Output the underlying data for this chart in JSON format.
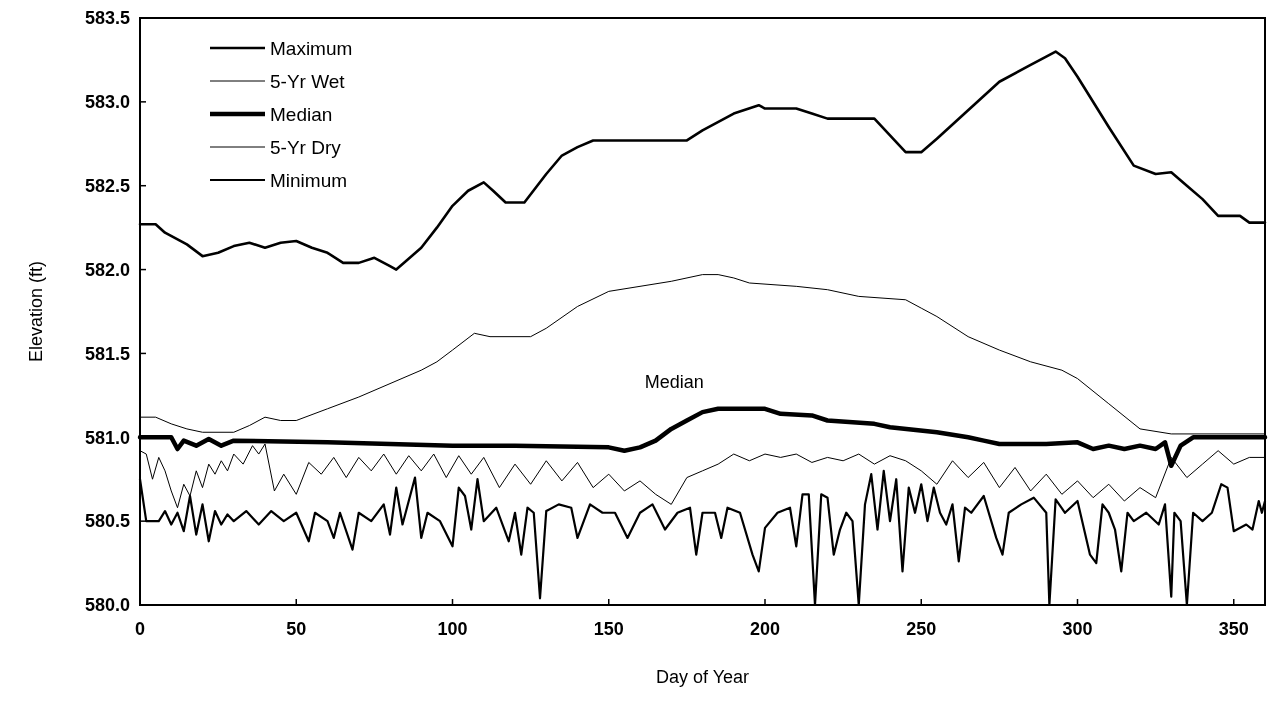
{
  "chart_data": {
    "type": "line",
    "xlabel": "Day of Year",
    "ylabel": "Elevation (ft)",
    "xlim": [
      0,
      360
    ],
    "xticks": [
      0,
      50,
      100,
      150,
      200,
      250,
      300,
      350
    ],
    "ylim": [
      580,
      583.5
    ],
    "yticks": [
      {
        "value": 580,
        "label": "580.0"
      },
      580.5,
      {
        "value": 581,
        "label": "581.0"
      },
      581.5,
      {
        "value": 582,
        "label": "582.0"
      },
      582.5,
      {
        "value": 583,
        "label": "583.0"
      },
      583.5
    ],
    "grid": false,
    "legend": "top left",
    "line_style": "solid",
    "marker": "none",
    "annotations": [
      "Median"
    ],
    "series": [
      {
        "name": "Maximum",
        "color": "#000000",
        "x": [
          0,
          5,
          8,
          15,
          20,
          25,
          30,
          35,
          40,
          45,
          50,
          55,
          60,
          65,
          70,
          75,
          80,
          82,
          90,
          95,
          100,
          105,
          110,
          113,
          117,
          123,
          130,
          135,
          140,
          145,
          175,
          180,
          190,
          198,
          200,
          210,
          215,
          220,
          235,
          240,
          245,
          250,
          255,
          265,
          275,
          285,
          290,
          293,
          296,
          300,
          310,
          318,
          325,
          330,
          335,
          340,
          345,
          352,
          355,
          360
        ],
        "values": [
          582.27,
          582.27,
          582.22,
          582.15,
          582.08,
          582.1,
          582.14,
          582.16,
          582.13,
          582.16,
          582.17,
          582.13,
          582.1,
          582.04,
          582.04,
          582.07,
          582.02,
          582.0,
          582.13,
          582.25,
          582.38,
          582.47,
          582.52,
          582.47,
          582.4,
          582.4,
          582.57,
          582.68,
          582.73,
          582.77,
          582.77,
          582.83,
          582.93,
          582.98,
          582.96,
          582.96,
          582.93,
          582.9,
          582.9,
          582.8,
          582.7,
          582.7,
          582.78,
          582.95,
          583.12,
          583.22,
          583.27,
          583.3,
          583.26,
          583.15,
          582.85,
          582.62,
          582.57,
          582.58,
          582.5,
          582.42,
          582.32,
          582.32,
          582.28,
          582.28
        ]
      },
      {
        "name": "5-Yr Wet",
        "color": "#000000",
        "x": [
          0,
          5,
          10,
          15,
          20,
          30,
          35,
          40,
          45,
          50,
          60,
          70,
          80,
          90,
          95,
          100,
          107,
          112,
          125,
          130,
          140,
          150,
          160,
          170,
          180,
          185,
          190,
          195,
          210,
          220,
          230,
          245,
          250,
          255,
          265,
          275,
          285,
          295,
          300,
          310,
          320,
          330,
          360
        ],
        "values": [
          581.12,
          581.12,
          581.08,
          581.05,
          581.03,
          581.03,
          581.07,
          581.12,
          581.1,
          581.1,
          581.17,
          581.24,
          581.32,
          581.4,
          581.45,
          581.52,
          581.62,
          581.6,
          581.6,
          581.65,
          581.78,
          581.87,
          581.9,
          581.93,
          581.97,
          581.97,
          581.95,
          581.92,
          581.9,
          581.88,
          581.84,
          581.82,
          581.77,
          581.72,
          581.6,
          581.52,
          581.45,
          581.4,
          581.35,
          581.2,
          581.05,
          581.02,
          581.02
        ]
      },
      {
        "name": "Median",
        "color": "#000000",
        "x": [
          0,
          10,
          12,
          14,
          18,
          22,
          26,
          30,
          60,
          80,
          100,
          120,
          150,
          155,
          160,
          165,
          170,
          175,
          180,
          185,
          200,
          205,
          215,
          220,
          235,
          240,
          255,
          265,
          270,
          275,
          290,
          300,
          305,
          310,
          315,
          320,
          325,
          328,
          330,
          333,
          337,
          360
        ],
        "values": [
          581.0,
          581.0,
          580.93,
          580.98,
          580.95,
          580.99,
          580.95,
          580.98,
          580.97,
          580.96,
          580.95,
          580.95,
          580.94,
          580.92,
          580.94,
          580.98,
          581.05,
          581.1,
          581.15,
          581.17,
          581.17,
          581.14,
          581.13,
          581.1,
          581.08,
          581.06,
          581.03,
          581.0,
          580.98,
          580.96,
          580.96,
          580.97,
          580.93,
          580.95,
          580.93,
          580.95,
          580.93,
          580.97,
          580.83,
          580.95,
          581.0,
          581.0
        ]
      },
      {
        "name": "5-Yr Dry",
        "color": "#000000",
        "x": [
          0,
          2,
          4,
          6,
          8,
          10,
          12,
          14,
          16,
          18,
          20,
          22,
          24,
          26,
          28,
          30,
          33,
          36,
          38,
          40,
          43,
          46,
          50,
          54,
          58,
          62,
          66,
          70,
          74,
          78,
          82,
          86,
          90,
          94,
          98,
          102,
          106,
          110,
          115,
          120,
          125,
          130,
          135,
          140,
          145,
          150,
          155,
          160,
          165,
          170,
          175,
          180,
          185,
          190,
          195,
          200,
          205,
          210,
          215,
          220,
          225,
          230,
          235,
          240,
          245,
          250,
          255,
          260,
          265,
          270,
          275,
          280,
          285,
          290,
          295,
          300,
          305,
          310,
          315,
          320,
          325,
          330,
          335,
          340,
          345,
          350,
          355,
          360
        ],
        "values": [
          580.92,
          580.9,
          580.75,
          580.88,
          580.8,
          580.68,
          580.58,
          580.72,
          580.65,
          580.8,
          580.7,
          580.84,
          580.78,
          580.86,
          580.8,
          580.9,
          580.84,
          580.95,
          580.9,
          580.96,
          580.68,
          580.78,
          580.66,
          580.85,
          580.78,
          580.88,
          580.76,
          580.88,
          580.8,
          580.9,
          580.78,
          580.89,
          580.8,
          580.9,
          580.76,
          580.89,
          580.78,
          580.88,
          580.7,
          580.84,
          580.72,
          580.86,
          580.74,
          580.85,
          580.7,
          580.78,
          580.68,
          580.74,
          580.66,
          580.6,
          580.76,
          580.8,
          580.84,
          580.9,
          580.86,
          580.9,
          580.88,
          580.9,
          580.85,
          580.88,
          580.86,
          580.9,
          580.84,
          580.89,
          580.86,
          580.8,
          580.72,
          580.86,
          580.76,
          580.85,
          580.7,
          580.82,
          580.68,
          580.78,
          580.66,
          580.74,
          580.64,
          580.72,
          580.62,
          580.7,
          580.64,
          580.88,
          580.76,
          580.84,
          580.92,
          580.84,
          580.88,
          580.88
        ]
      },
      {
        "name": "Minimum",
        "color": "#000000",
        "x": [
          0,
          2,
          6,
          8,
          10,
          12,
          14,
          16,
          18,
          20,
          22,
          24,
          26,
          28,
          30,
          34,
          38,
          42,
          46,
          50,
          54,
          56,
          60,
          62,
          64,
          68,
          70,
          74,
          78,
          80,
          82,
          84,
          88,
          90,
          92,
          96,
          100,
          102,
          104,
          106,
          108,
          110,
          114,
          118,
          120,
          122,
          124,
          126,
          128,
          130,
          134,
          138,
          140,
          144,
          148,
          152,
          156,
          160,
          164,
          168,
          172,
          176,
          178,
          180,
          184,
          186,
          188,
          192,
          196,
          198,
          200,
          204,
          208,
          210,
          212,
          214,
          216,
          218,
          220,
          222,
          224,
          226,
          228,
          230,
          232,
          234,
          236,
          238,
          240,
          242,
          244,
          246,
          248,
          250,
          252,
          254,
          256,
          258,
          260,
          262,
          264,
          266,
          270,
          274,
          276,
          278,
          282,
          286,
          290,
          291,
          293,
          296,
          300,
          304,
          306,
          308,
          310,
          312,
          314,
          316,
          318,
          322,
          326,
          328,
          330,
          331,
          333,
          335,
          337,
          340,
          343,
          346,
          348,
          350,
          354,
          356,
          358,
          359,
          360
        ],
        "values": [
          580.75,
          580.5,
          580.5,
          580.56,
          580.48,
          580.55,
          580.44,
          580.65,
          580.42,
          580.6,
          580.38,
          580.56,
          580.48,
          580.54,
          580.5,
          580.56,
          580.48,
          580.56,
          580.5,
          580.55,
          580.38,
          580.55,
          580.5,
          580.4,
          580.55,
          580.33,
          580.55,
          580.5,
          580.6,
          580.42,
          580.7,
          580.48,
          580.76,
          580.4,
          580.55,
          580.5,
          580.35,
          580.7,
          580.65,
          580.45,
          580.75,
          580.5,
          580.58,
          580.38,
          580.55,
          580.3,
          580.58,
          580.55,
          580.04,
          580.56,
          580.6,
          580.58,
          580.4,
          580.6,
          580.55,
          580.55,
          580.4,
          580.55,
          580.6,
          580.45,
          580.55,
          580.58,
          580.3,
          580.55,
          580.55,
          580.4,
          580.58,
          580.55,
          580.3,
          580.2,
          580.46,
          580.55,
          580.58,
          580.35,
          580.66,
          580.66,
          580.0,
          580.66,
          580.64,
          580.3,
          580.45,
          580.55,
          580.5,
          580.0,
          580.6,
          580.78,
          580.45,
          580.8,
          580.5,
          580.75,
          580.2,
          580.7,
          580.55,
          580.72,
          580.5,
          580.7,
          580.55,
          580.48,
          580.6,
          580.26,
          580.58,
          580.55,
          580.65,
          580.4,
          580.3,
          580.55,
          580.6,
          580.64,
          580.55,
          580.0,
          580.63,
          580.55,
          580.62,
          580.3,
          580.25,
          580.6,
          580.55,
          580.45,
          580.2,
          580.55,
          580.5,
          580.55,
          580.48,
          580.6,
          580.05,
          580.55,
          580.5,
          580.0,
          580.55,
          580.5,
          580.55,
          580.72,
          580.7,
          580.44,
          580.48,
          580.45,
          580.62,
          580.55,
          580.62
        ]
      }
    ]
  }
}
